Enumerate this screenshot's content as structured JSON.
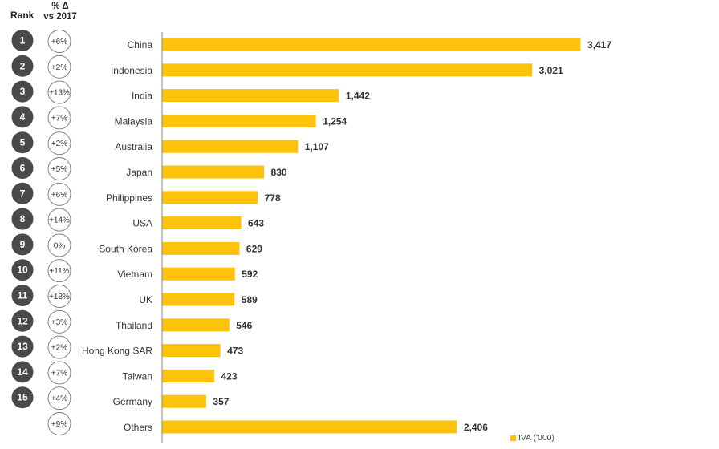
{
  "headers": {
    "rank": "Rank",
    "delta_line1": "% Δ",
    "delta_line2": "vs 2017"
  },
  "colors": {
    "bar": "#FDC20A",
    "rank_circle": "#4A4A4A",
    "axis": "#888888"
  },
  "chart_data": {
    "type": "bar",
    "orientation": "horizontal",
    "categories": [
      "China",
      "Indonesia",
      "India",
      "Malaysia",
      "Australia",
      "Japan",
      "Philippines",
      "USA",
      "South Korea",
      "Vietnam",
      "UK",
      "Thailand",
      "Hong Kong SAR",
      "Taiwan",
      "Germany",
      "Others"
    ],
    "values": [
      3417,
      3021,
      1442,
      1254,
      1107,
      830,
      778,
      643,
      629,
      592,
      589,
      546,
      473,
      423,
      357,
      2406
    ],
    "value_labels": [
      "3,417",
      "3,021",
      "1,442",
      "1,254",
      "1,107",
      "830",
      "778",
      "643",
      "629",
      "592",
      "589",
      "546",
      "473",
      "423",
      "357",
      "2,406"
    ],
    "ranks": [
      "1",
      "2",
      "3",
      "4",
      "5",
      "6",
      "7",
      "8",
      "9",
      "10",
      "11",
      "12",
      "13",
      "14",
      "15",
      ""
    ],
    "changes": [
      "+6%",
      "+2%",
      "+13%",
      "+7%",
      "+2%",
      "+5%",
      "+6%",
      "+14%",
      "0%",
      "+11%",
      "+13%",
      "+3%",
      "+2%",
      "+7%",
      "+4%",
      "+9%"
    ],
    "series": [
      {
        "name": "IVA ('000)"
      }
    ],
    "legend_position": "bottom-right",
    "xlim": [
      0,
      3417
    ]
  }
}
